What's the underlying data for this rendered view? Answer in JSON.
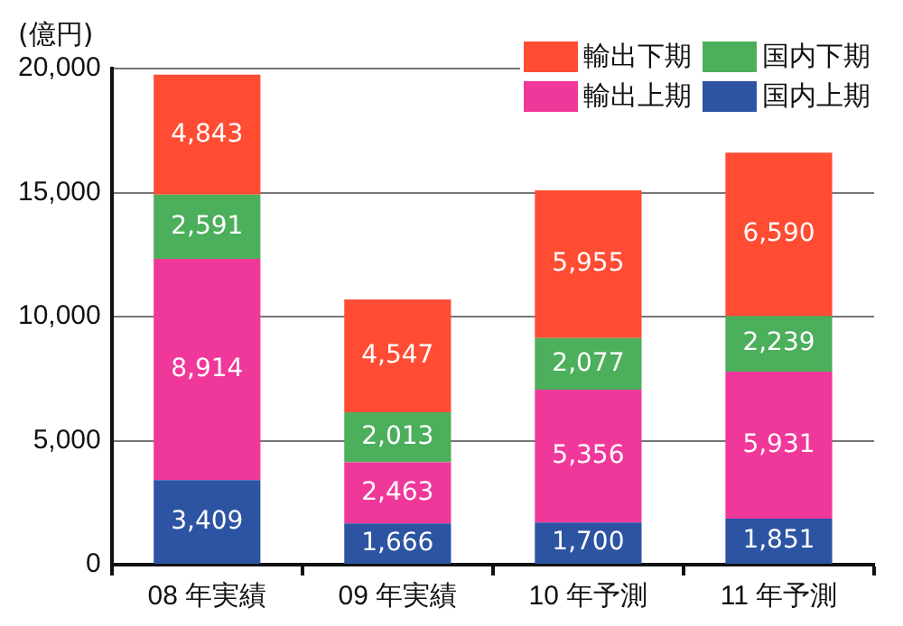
{
  "chart_data": {
    "type": "bar",
    "stacked": true,
    "ylabel": "(億円)",
    "categories": [
      "08 年実績",
      "09 年実績",
      "10 年予測",
      "11 年予測"
    ],
    "series": [
      {
        "name": "国内上期",
        "color": "#2c54a2",
        "values": [
          3409,
          1666,
          1700,
          1851
        ],
        "value_labels": [
          "3,409",
          "1,666",
          "1,700",
          "1,851"
        ]
      },
      {
        "name": "輸出上期",
        "color": "#f0389a",
        "values": [
          8914,
          2463,
          5356,
          5931
        ],
        "value_labels": [
          "8,914",
          "2,463",
          "5,356",
          "5,931"
        ]
      },
      {
        "name": "国内下期",
        "color": "#4caf5b",
        "values": [
          2591,
          2013,
          2077,
          2239
        ],
        "value_labels": [
          "2,591",
          "2,013",
          "2,077",
          "2,239"
        ]
      },
      {
        "name": "輸出下期",
        "color": "#ff4c33",
        "values": [
          4843,
          4547,
          5955,
          6590
        ],
        "value_labels": [
          "4,843",
          "4,547",
          "5,955",
          "6,590"
        ]
      }
    ],
    "ylim": [
      0,
      20000
    ],
    "yticks": [
      {
        "value": 0,
        "label": "0"
      },
      {
        "value": 5000,
        "label": "5,000"
      },
      {
        "value": 10000,
        "label": "10,000"
      },
      {
        "value": 15000,
        "label": "15,000"
      },
      {
        "value": 20000,
        "label": "20,000"
      }
    ],
    "grid": "y",
    "legend": "top right"
  }
}
